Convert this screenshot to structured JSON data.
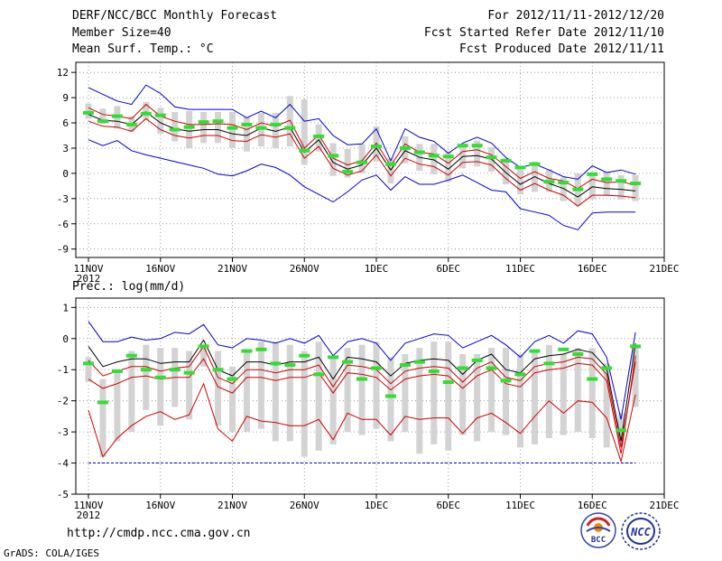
{
  "header": {
    "title": "DERF/NCC/BCC Monthly Forecast",
    "member_size": "Member Size=40",
    "variable": "Mean Surf. Temp.: °C",
    "forecast_period": "For 2012/11/11-2012/12/20",
    "start_date": "Fcst Started Refer Date 2012/11/10",
    "produced_date": "Fcst Produced Date 2012/11/11"
  },
  "footer": {
    "url": "http://cmdp.ncc.cma.gov.cn",
    "credit": "GrADS: COLA/IGES",
    "logo1_text": "BCC",
    "logo2_text": "NCC"
  },
  "colors": {
    "max_min": "#0000d0",
    "mean": "#000000",
    "spread": "#d00000",
    "box": "#d3d3d3",
    "control": "#33dd33",
    "grid": "#888888"
  },
  "chart_data": [
    {
      "type": "line",
      "title": "Mean Surf. Temp.: °C",
      "xlabel": "",
      "ylabel": "°C",
      "xticklabels": [
        "11NOV",
        "16NOV",
        "21NOV",
        "26NOV",
        "1DEC",
        "6DEC",
        "11DEC",
        "16DEC",
        "21DEC"
      ],
      "xtick_days": [
        0,
        5,
        10,
        15,
        20,
        25,
        30,
        35,
        40
      ],
      "year_label": "2012",
      "yticks": [
        12,
        9,
        6,
        3,
        0,
        -3,
        -6,
        -9
      ],
      "ylim": [
        -10,
        13.2
      ],
      "x": [
        0,
        1,
        2,
        3,
        4,
        5,
        6,
        7,
        8,
        9,
        10,
        11,
        12,
        13,
        14,
        15,
        16,
        17,
        18,
        19,
        20,
        21,
        22,
        23,
        24,
        25,
        26,
        27,
        28,
        29,
        30,
        31,
        32,
        33,
        34,
        35,
        36,
        37,
        38
      ],
      "series": [
        {
          "name": "max",
          "color": "#0000d0",
          "values": [
            10.2,
            9.4,
            8.6,
            8.2,
            10.5,
            9.5,
            7.9,
            7.6,
            7.6,
            7.6,
            7.6,
            6.6,
            7.4,
            6.6,
            8.2,
            6.2,
            6.5,
            4.5,
            3.4,
            3.5,
            5.3,
            1.5,
            5.3,
            4.3,
            3.8,
            2.4,
            3.6,
            4.3,
            3.6,
            1.9,
            0.7,
            1.1,
            0.4,
            -0.4,
            -0.7,
            0.9,
            0.1,
            0.4,
            -0.1
          ]
        },
        {
          "name": "spread_upper",
          "color": "#d00000",
          "values": [
            7.8,
            7.0,
            6.8,
            6.5,
            8.2,
            6.8,
            6.2,
            5.8,
            5.8,
            5.9,
            5.8,
            5.2,
            6.0,
            5.6,
            6.3,
            3.0,
            4.6,
            1.8,
            1.0,
            1.5,
            3.6,
            0.9,
            3.5,
            2.5,
            2.3,
            1.2,
            2.6,
            2.8,
            2.2,
            0.8,
            -0.6,
            0.2,
            -0.6,
            -0.9,
            -1.8,
            -0.7,
            -1.1,
            -1.0,
            -1.4
          ]
        },
        {
          "name": "mean",
          "color": "#000000",
          "values": [
            7.0,
            6.3,
            6.2,
            5.8,
            7.3,
            6.0,
            5.3,
            5.0,
            5.2,
            5.2,
            4.7,
            4.5,
            5.4,
            5.0,
            5.5,
            2.5,
            4.0,
            1.3,
            0.5,
            1.0,
            3.0,
            0.4,
            2.7,
            1.9,
            1.6,
            0.5,
            2.0,
            2.1,
            1.7,
            0.1,
            -1.3,
            -0.4,
            -1.2,
            -1.8,
            -2.8,
            -1.6,
            -1.8,
            -1.9,
            -2.1
          ]
        },
        {
          "name": "spread_lower",
          "color": "#d00000",
          "values": [
            6.2,
            5.6,
            5.5,
            5.0,
            6.5,
            5.2,
            4.5,
            4.2,
            4.5,
            4.5,
            3.9,
            3.8,
            4.6,
            4.3,
            4.7,
            1.8,
            3.2,
            0.6,
            -0.2,
            0.3,
            2.2,
            -0.3,
            1.8,
            1.1,
            0.8,
            -0.2,
            1.3,
            1.4,
            1.0,
            -0.6,
            -2.0,
            -1.2,
            -2.0,
            -2.6,
            -3.9,
            -2.6,
            -2.6,
            -2.7,
            -2.9
          ]
        },
        {
          "name": "min",
          "color": "#0000d0",
          "values": [
            4.0,
            3.3,
            3.9,
            2.7,
            2.2,
            1.8,
            1.4,
            1.0,
            0.6,
            -0.1,
            -0.3,
            0.3,
            1.1,
            0.7,
            -0.2,
            -1.6,
            -2.5,
            -3.4,
            -2.2,
            -0.8,
            -0.2,
            -2.0,
            -0.4,
            -1.3,
            -1.3,
            -0.8,
            -0.2,
            -1.1,
            -2.0,
            -2.2,
            -4.2,
            -4.6,
            -5.0,
            -6.2,
            -6.7,
            -4.7,
            -4.6,
            -4.6,
            -4.6
          ]
        },
        {
          "name": "box_high",
          "values": [
            8.3,
            7.7,
            8.0,
            6.8,
            8.5,
            7.8,
            7.3,
            7.4,
            7.3,
            7.3,
            7.3,
            6.7,
            7.2,
            7.2,
            9.2,
            8.8,
            5.8,
            3.6,
            2.9,
            3.5,
            5.6,
            1.8,
            4.4,
            3.5,
            3.5,
            2.6,
            3.5,
            3.9,
            3.1,
            1.8,
            0.7,
            1.4,
            0.5,
            -0.5,
            0.0,
            0.1,
            0.2,
            -0.2,
            -0.2
          ]
        },
        {
          "name": "box_low",
          "values": [
            6.5,
            5.9,
            5.3,
            4.9,
            6.3,
            4.7,
            3.8,
            3.0,
            3.6,
            3.6,
            3.0,
            2.6,
            3.2,
            3.0,
            3.2,
            1.0,
            2.6,
            -0.3,
            -0.5,
            0.0,
            1.4,
            -1.2,
            1.2,
            0.3,
            -0.1,
            -1.0,
            0.6,
            0.8,
            0.2,
            -1.3,
            -2.5,
            -2.2,
            -2.2,
            -3.3,
            -3.8,
            -3.1,
            -2.7,
            -3.1,
            -3.3
          ]
        },
        {
          "name": "control",
          "color": "#33dd33",
          "values": [
            7.2,
            6.2,
            6.8,
            5.8,
            7.1,
            6.9,
            5.2,
            5.5,
            6.1,
            6.2,
            5.4,
            5.8,
            5.4,
            5.8,
            5.4,
            2.7,
            4.4,
            2.1,
            0.2,
            1.3,
            3.2,
            1.1,
            3.0,
            2.5,
            2.1,
            2.0,
            3.3,
            3.3,
            1.9,
            1.5,
            0.7,
            1.1,
            -1.0,
            -1.1,
            -1.9,
            -0.1,
            -0.7,
            -0.9,
            -1.2
          ]
        }
      ]
    },
    {
      "type": "line",
      "title": "Prec.: log(mm/d)",
      "xlabel": "",
      "ylabel": "log(mm/d)",
      "xticklabels": [
        "11NOV",
        "16NOV",
        "21NOV",
        "26NOV",
        "1DEC",
        "6DEC",
        "11DEC",
        "16DEC",
        "21DEC"
      ],
      "xtick_days": [
        0,
        5,
        10,
        15,
        20,
        25,
        30,
        35,
        40
      ],
      "year_label": "2012",
      "yticks": [
        1,
        0,
        -1,
        -2,
        -3,
        -4,
        -5
      ],
      "ylim": [
        -5,
        1.3
      ],
      "floor_value": -4,
      "x": [
        0,
        1,
        2,
        3,
        4,
        5,
        6,
        7,
        8,
        9,
        10,
        11,
        12,
        13,
        14,
        15,
        16,
        17,
        18,
        19,
        20,
        21,
        22,
        23,
        24,
        25,
        26,
        27,
        28,
        29,
        30,
        31,
        32,
        33,
        34,
        35,
        36,
        37,
        38
      ],
      "series": [
        {
          "name": "max",
          "color": "#0000d0",
          "values": [
            0.55,
            -0.1,
            -0.1,
            0.05,
            -0.05,
            0.0,
            0.2,
            0.15,
            0.45,
            -0.2,
            -0.3,
            0.0,
            -0.05,
            -0.15,
            0.0,
            -0.15,
            0.1,
            -0.55,
            -0.1,
            0.0,
            -0.15,
            -0.7,
            -0.15,
            0.0,
            0.15,
            0.1,
            -0.3,
            -0.1,
            0.1,
            -0.2,
            -0.6,
            -0.1,
            0.1,
            -0.15,
            0.25,
            0.15,
            -0.6,
            -2.6,
            0.2
          ]
        },
        {
          "name": "spread_upper",
          "color": "#d00000",
          "values": [
            -0.7,
            -1.2,
            -1.05,
            -0.9,
            -0.9,
            -1.05,
            -0.95,
            -0.9,
            -0.25,
            -1.25,
            -1.45,
            -1.0,
            -1.0,
            -1.1,
            -1.0,
            -1.0,
            -0.85,
            -1.55,
            -0.85,
            -0.9,
            -1.0,
            -1.45,
            -1.05,
            -0.95,
            -0.9,
            -0.95,
            -1.4,
            -0.95,
            -0.75,
            -1.25,
            -1.35,
            -0.9,
            -0.8,
            -0.75,
            -0.6,
            -0.65,
            -1.15,
            -3.5,
            -0.75
          ]
        },
        {
          "name": "mean",
          "color": "#000000",
          "values": [
            -0.25,
            -0.9,
            -0.75,
            -0.65,
            -0.65,
            -0.8,
            -0.75,
            -0.75,
            -0.05,
            -1.0,
            -1.2,
            -0.75,
            -0.75,
            -0.85,
            -0.75,
            -0.75,
            -0.6,
            -1.3,
            -0.6,
            -0.65,
            -0.75,
            -1.2,
            -0.8,
            -0.7,
            -0.65,
            -0.7,
            -1.15,
            -0.7,
            -0.5,
            -1.0,
            -1.1,
            -0.65,
            -0.55,
            -0.5,
            -0.35,
            -0.45,
            -0.95,
            -3.3,
            -0.15
          ]
        },
        {
          "name": "spread_lower",
          "color": "#d00000",
          "values": [
            -1.3,
            -1.6,
            -1.45,
            -1.25,
            -1.2,
            -1.3,
            -1.25,
            -1.25,
            -0.65,
            -1.55,
            -1.75,
            -1.25,
            -1.25,
            -1.35,
            -1.25,
            -1.25,
            -1.1,
            -1.75,
            -1.1,
            -1.15,
            -1.25,
            -1.65,
            -1.3,
            -1.2,
            -1.15,
            -1.2,
            -1.6,
            -1.2,
            -1.0,
            -1.45,
            -1.55,
            -1.1,
            -1.0,
            -0.95,
            -0.8,
            -0.85,
            -1.35,
            -3.7,
            -0.55
          ]
        },
        {
          "name": "min",
          "color": "#d00000",
          "values": [
            -2.3,
            -3.8,
            -3.2,
            -2.8,
            -2.5,
            -2.35,
            -2.6,
            -2.45,
            -1.45,
            -2.9,
            -3.3,
            -2.5,
            -2.65,
            -2.7,
            -2.8,
            -2.8,
            -2.6,
            -3.25,
            -2.4,
            -2.6,
            -2.6,
            -3.1,
            -2.5,
            -2.6,
            -2.55,
            -2.55,
            -3.05,
            -2.55,
            -2.4,
            -2.7,
            -3.05,
            -2.5,
            -2.0,
            -2.4,
            -2.0,
            -2.05,
            -2.55,
            -3.95,
            -1.8
          ]
        },
        {
          "name": "box_high",
          "values": [
            -0.6,
            -1.3,
            -1.0,
            -0.4,
            -0.2,
            -0.3,
            -0.3,
            -0.4,
            -0.3,
            -0.4,
            -0.9,
            -0.4,
            -0.1,
            -0.1,
            -0.2,
            -0.4,
            -0.1,
            -0.6,
            -0.3,
            -0.2,
            -0.1,
            -0.6,
            -0.5,
            -0.3,
            -0.1,
            -0.1,
            -0.5,
            -0.5,
            -0.3,
            -0.3,
            -0.5,
            -0.4,
            -0.2,
            -0.5,
            -0.3,
            -0.3,
            -0.8,
            -2.4,
            -0.2
          ]
        },
        {
          "name": "box_low",
          "values": [
            -1.4,
            -3.8,
            -3.3,
            -3.0,
            -2.3,
            -2.8,
            -2.2,
            -2.6,
            -0.9,
            -2.8,
            -3.0,
            -3.0,
            -2.9,
            -3.3,
            -3.3,
            -3.8,
            -3.6,
            -3.4,
            -3.0,
            -3.1,
            -2.9,
            -3.3,
            -3.0,
            -3.7,
            -3.4,
            -3.6,
            -3.1,
            -3.3,
            -3.0,
            -3.1,
            -3.5,
            -3.4,
            -3.2,
            -3.1,
            -3.0,
            -3.2,
            -3.5,
            -3.4,
            -2.2
          ]
        },
        {
          "name": "control",
          "color": "#33dd33",
          "values": [
            -0.8,
            -2.05,
            -1.05,
            -0.55,
            -1.0,
            -1.25,
            -1.0,
            -1.1,
            -0.25,
            -1.0,
            -1.3,
            -0.4,
            -0.35,
            -0.8,
            -0.85,
            -0.55,
            -1.15,
            -0.6,
            -0.75,
            -1.3,
            -0.95,
            -1.85,
            -0.85,
            -0.75,
            -1.05,
            -1.4,
            -0.95,
            -0.7,
            -0.95,
            -1.35,
            -1.15,
            -0.4,
            -0.8,
            -0.35,
            -0.5,
            -1.3,
            -0.95,
            -2.95,
            -0.25
          ]
        }
      ]
    }
  ]
}
